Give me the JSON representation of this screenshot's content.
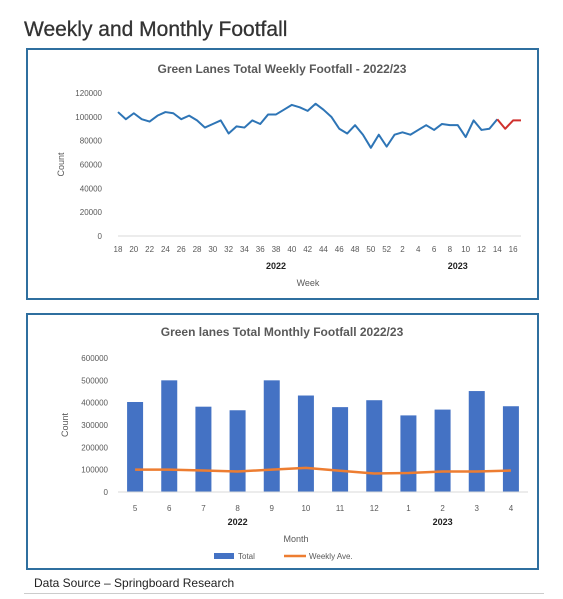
{
  "page": {
    "title": "Weekly and Monthly Footfall",
    "source": "Data Source – Springboard Research"
  },
  "colors": {
    "border": "#2f6f9f",
    "weekly_line": "#2e75b6",
    "highlight_line": "#d0312d",
    "bar": "#4472c4",
    "avg_line": "#ed7d31"
  },
  "chart_data": [
    {
      "type": "line",
      "title": "Green Lanes Total Weekly Footfall - 2022/23",
      "xlabel": "Week",
      "ylabel": "Count",
      "ylim": [
        0,
        120000
      ],
      "yticks": [
        0,
        20000,
        40000,
        60000,
        80000,
        100000,
        120000
      ],
      "x_tick_labels": [
        "18",
        "20",
        "22",
        "24",
        "26",
        "28",
        "30",
        "32",
        "34",
        "36",
        "38",
        "40",
        "42",
        "44",
        "46",
        "48",
        "50",
        "52",
        "2",
        "4",
        "6",
        "8",
        "10",
        "12",
        "14",
        "16"
      ],
      "year_labels": [
        {
          "label": "2022",
          "at_week_index": 20
        },
        {
          "label": "2023",
          "at_week_index": 43
        }
      ],
      "grid": false,
      "legend": "none",
      "weeks": [
        "18",
        "19",
        "20",
        "21",
        "22",
        "23",
        "24",
        "25",
        "26",
        "27",
        "28",
        "29",
        "30",
        "31",
        "32",
        "33",
        "34",
        "35",
        "36",
        "37",
        "38",
        "39",
        "40",
        "41",
        "42",
        "43",
        "44",
        "45",
        "46",
        "47",
        "48",
        "49",
        "50",
        "51",
        "52",
        "1",
        "2",
        "3",
        "4",
        "5",
        "6",
        "7",
        "8",
        "9",
        "10",
        "11",
        "12",
        "13",
        "14",
        "15",
        "16",
        "17"
      ],
      "series": [
        {
          "values": [
            104000,
            98000,
            103000,
            98000,
            96000,
            101000,
            104000,
            103000,
            98000,
            101000,
            97000,
            91000,
            94000,
            97000,
            86000,
            92000,
            91000,
            97000,
            94000,
            102000,
            102000,
            106000,
            110000,
            108000,
            105000,
            111000,
            106000,
            100000,
            90000,
            86000,
            93000,
            85000,
            74000,
            85000,
            75000,
            85000,
            87000,
            85000,
            89000,
            93000,
            89000,
            94000,
            93000,
            93000,
            83000,
            97000,
            89000,
            90000,
            98000,
            90000,
            97000,
            97000
          ]
        }
      ],
      "highlight_from_index": 48
    },
    {
      "type": "bar",
      "title": "Green lanes Total Monthly Footfall 2022/23",
      "xlabel": "Month",
      "ylabel": "Count",
      "ylim": [
        0,
        600000
      ],
      "yticks": [
        0,
        100000,
        200000,
        300000,
        400000,
        500000,
        600000
      ],
      "categories": [
        "5",
        "6",
        "7",
        "8",
        "9",
        "10",
        "11",
        "12",
        "1",
        "2",
        "3",
        "4"
      ],
      "year_labels": [
        {
          "label": "2022",
          "at_category_index": 3.5
        },
        {
          "label": "2023",
          "at_category_index": 9.5
        }
      ],
      "grid": false,
      "legend": "bottom",
      "series": [
        {
          "name": "Total",
          "type": "bar",
          "values": [
            403000,
            500000,
            382000,
            366000,
            500000,
            432000,
            380000,
            411000,
            343000,
            369000,
            452000,
            384000
          ]
        },
        {
          "name": "Weekly Ave.",
          "type": "line",
          "values": [
            100000,
            100000,
            96000,
            92000,
            100000,
            108000,
            95000,
            83000,
            85000,
            92000,
            92000,
            96000
          ]
        }
      ]
    }
  ]
}
